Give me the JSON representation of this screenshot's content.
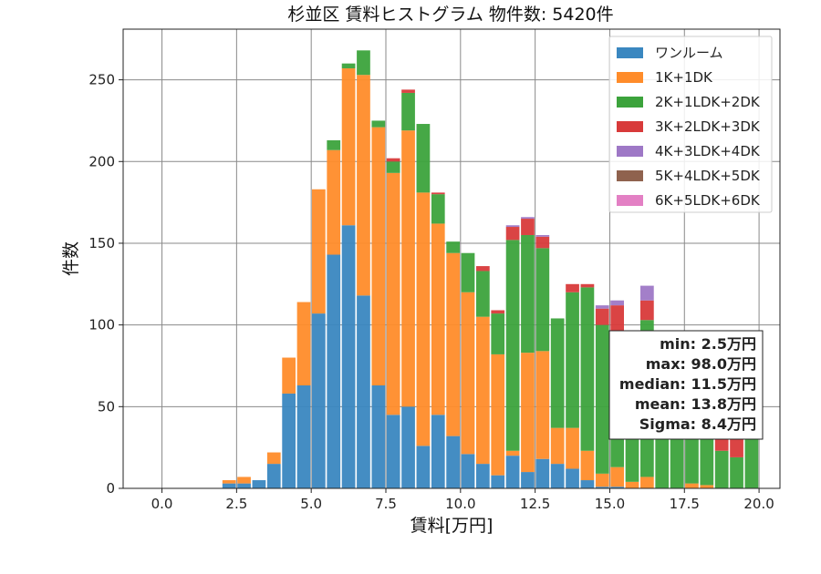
{
  "chart_data": {
    "type": "bar",
    "title": "杉並区 賃料ヒストグラム 物件数: 5420件",
    "xlabel": "賃料[万円]",
    "ylabel": "件数",
    "xlim": [
      -1.3,
      20.7
    ],
    "ylim": [
      0,
      281
    ],
    "x_ticks": [
      "0.0",
      "2.5",
      "5.0",
      "7.5",
      "10.0",
      "12.5",
      "15.0",
      "17.5",
      "20.0"
    ],
    "y_ticks": [
      "0",
      "50",
      "100",
      "150",
      "200",
      "250"
    ],
    "grid": true,
    "stacked": true,
    "bin_width": 0.5,
    "bin_starts": [
      2.0,
      2.5,
      3.0,
      3.5,
      4.0,
      4.5,
      5.0,
      5.5,
      6.0,
      6.5,
      7.0,
      7.5,
      8.0,
      8.5,
      9.0,
      9.5,
      10.0,
      10.5,
      11.0,
      11.5,
      12.0,
      12.5,
      13.0,
      13.5,
      14.0,
      14.5,
      15.0,
      15.5,
      16.0,
      16.5,
      17.0,
      17.5,
      18.0,
      18.5,
      19.0,
      19.5
    ],
    "legend_position": "top-right",
    "series": [
      {
        "name": "ワンルーム",
        "color": "#3a87c0",
        "values": [
          3,
          3,
          5,
          15,
          58,
          63,
          107,
          143,
          161,
          118,
          63,
          45,
          50,
          26,
          45,
          32,
          21,
          15,
          8,
          20,
          10,
          18,
          15,
          12,
          5,
          1,
          1,
          0,
          0,
          0,
          0,
          0,
          0,
          0,
          0,
          0
        ]
      },
      {
        "name": "1K+1DK",
        "color": "#ff8c2a",
        "values": [
          2,
          4,
          0,
          7,
          22,
          51,
          76,
          64,
          96,
          135,
          158,
          148,
          169,
          155,
          117,
          112,
          99,
          90,
          74,
          3,
          73,
          66,
          22,
          25,
          18,
          8,
          12,
          4,
          7,
          0,
          0,
          3,
          2,
          0,
          0,
          0
        ]
      },
      {
        "name": "2K+1LDK+2DK",
        "color": "#3ca33c",
        "values": [
          0,
          0,
          0,
          0,
          0,
          0,
          0,
          6,
          3,
          15,
          4,
          7,
          23,
          42,
          18,
          7,
          24,
          28,
          25,
          129,
          72,
          63,
          67,
          83,
          100,
          91,
          79,
          58,
          96,
          69,
          55,
          53,
          47,
          23,
          19,
          43
        ]
      },
      {
        "name": "3K+2LDK+3DK",
        "color": "#d83a3a",
        "values": [
          0,
          0,
          0,
          0,
          0,
          0,
          0,
          0,
          0,
          0,
          0,
          2,
          2,
          0,
          1,
          0,
          0,
          3,
          2,
          8,
          10,
          7,
          0,
          5,
          2,
          10,
          20,
          0,
          12,
          10,
          0,
          8,
          11,
          11,
          11,
          0
        ]
      },
      {
        "name": "4K+3LDK+4DK",
        "color": "#9e78c6",
        "values": [
          0,
          0,
          0,
          0,
          0,
          0,
          0,
          0,
          0,
          0,
          0,
          0,
          0,
          0,
          0,
          0,
          0,
          0,
          0,
          1,
          1,
          1,
          0,
          0,
          0,
          2,
          3,
          0,
          9,
          0,
          0,
          0,
          0,
          0,
          0,
          0
        ]
      },
      {
        "name": "5K+4LDK+5DK",
        "color": "#8f624e",
        "values": [
          0,
          0,
          0,
          0,
          0,
          0,
          0,
          0,
          0,
          0,
          0,
          0,
          0,
          0,
          0,
          0,
          0,
          0,
          0,
          0,
          0,
          0,
          0,
          0,
          0,
          0,
          0,
          0,
          0,
          0,
          0,
          0,
          0,
          0,
          0,
          0
        ]
      },
      {
        "name": "6K+5LDK+6DK",
        "color": "#e380c4",
        "values": [
          0,
          0,
          0,
          0,
          0,
          0,
          0,
          0,
          0,
          0,
          0,
          0,
          0,
          0,
          0,
          0,
          0,
          0,
          0,
          0,
          0,
          0,
          0,
          0,
          0,
          0,
          0,
          0,
          0,
          0,
          0,
          0,
          0,
          0,
          0,
          0
        ]
      }
    ],
    "stats": [
      "min: 2.5万円",
      "max: 98.0万円",
      "median: 11.5万円",
      "mean: 13.8万円",
      "Sigma: 8.4万円"
    ]
  }
}
